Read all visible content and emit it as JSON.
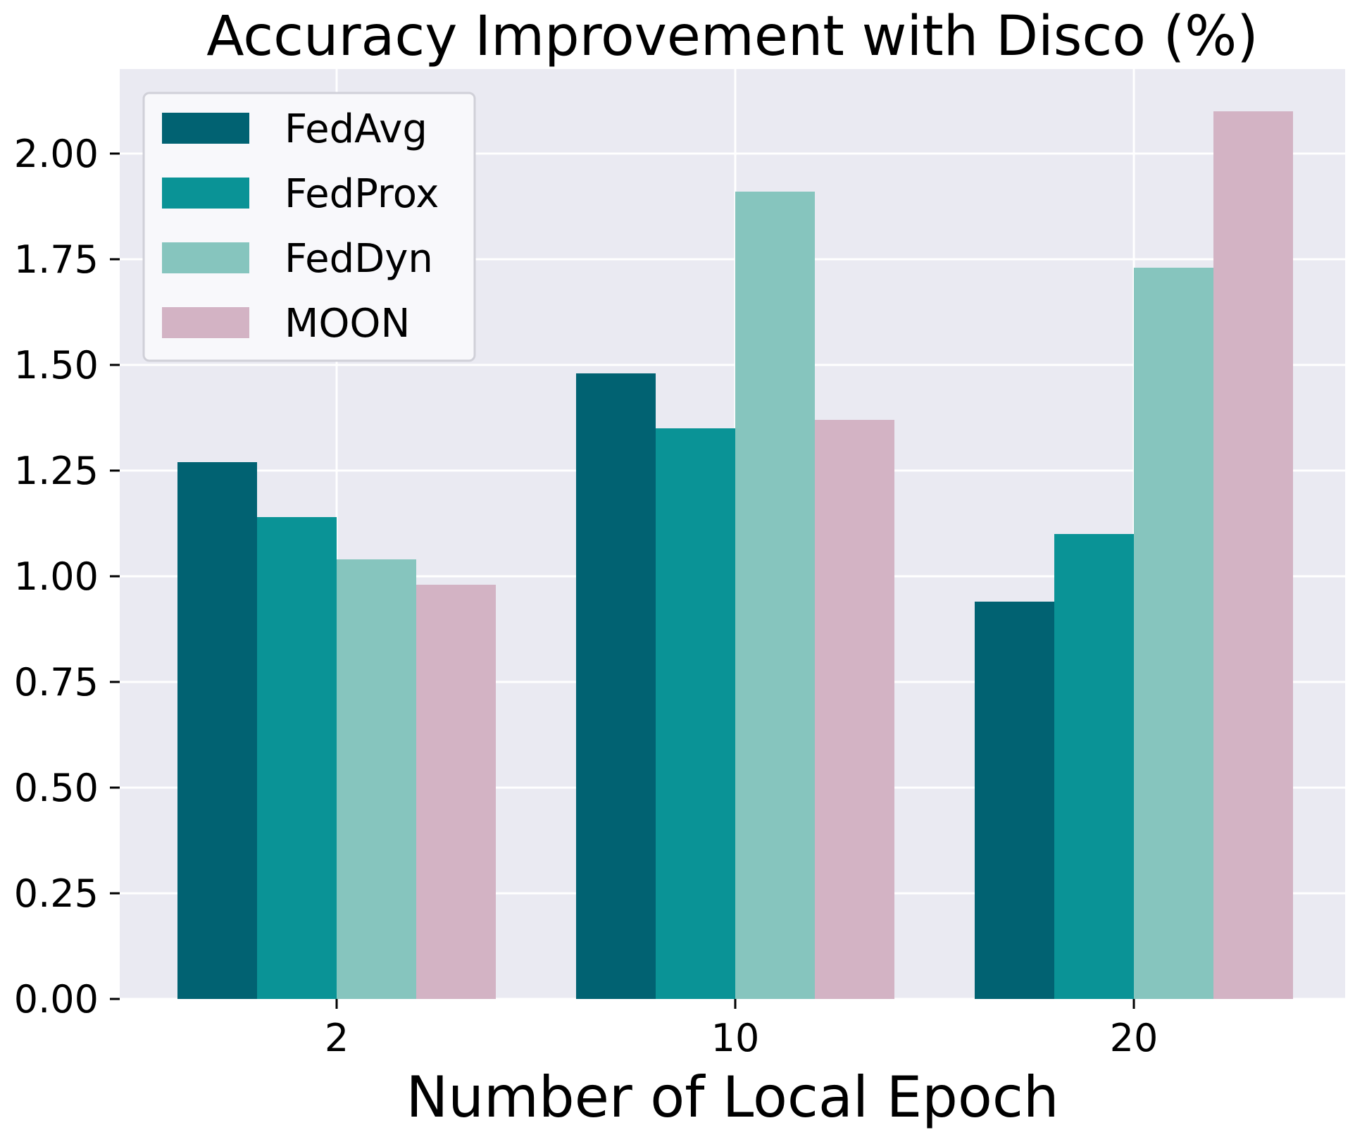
{
  "chart_data": {
    "type": "bar",
    "title": "Accuracy Improvement with Disco (%)",
    "xlabel": "Number of Local Epoch",
    "ylabel": "",
    "categories": [
      "2",
      "10",
      "20"
    ],
    "series": [
      {
        "name": "FedAvg",
        "values": [
          1.27,
          1.48,
          0.94
        ],
        "color": "#016272"
      },
      {
        "name": "FedProx",
        "values": [
          1.14,
          1.35,
          1.1
        ],
        "color": "#0a9396"
      },
      {
        "name": "FedDyn",
        "values": [
          1.04,
          1.91,
          1.73
        ],
        "color": "#86c5be"
      },
      {
        "name": "MOON",
        "values": [
          0.98,
          1.37,
          2.1
        ],
        "color": "#d3b3c4"
      }
    ],
    "ylim": [
      0,
      2.2
    ],
    "yticks": [
      "0.00",
      "0.25",
      "0.50",
      "0.75",
      "1.00",
      "1.25",
      "1.50",
      "1.75",
      "2.00"
    ],
    "grid": true,
    "legend_position": "top-left",
    "background_color": "#eaeaf2",
    "grid_color": "#ffffff"
  }
}
